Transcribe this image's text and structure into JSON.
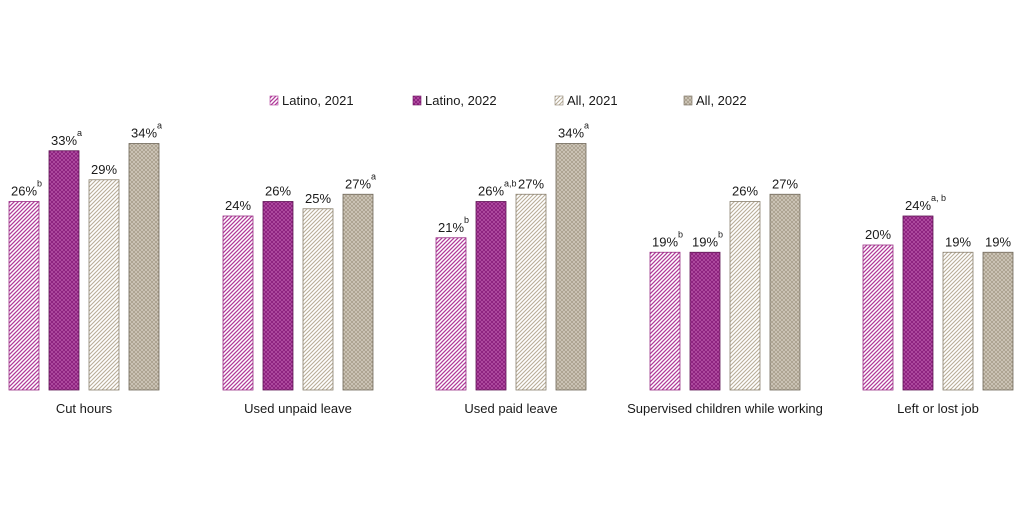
{
  "chart_data": {
    "type": "bar",
    "title": "",
    "xlabel": "",
    "ylabel": "",
    "ylim": [
      0,
      40
    ],
    "categories": [
      "Cut hours",
      "Used unpaid leave",
      "Used paid leave",
      "Supervised children while working",
      "Left or lost job"
    ],
    "series": [
      {
        "name": "Latino, 2021",
        "pattern": "latino-2021",
        "values": [
          26,
          24,
          21,
          19,
          20
        ],
        "labels": [
          "26%",
          "24%",
          "21%",
          "19%",
          "20%"
        ],
        "sup": [
          "b",
          "",
          "b",
          "b",
          ""
        ]
      },
      {
        "name": "Latino, 2022",
        "pattern": "latino-2022",
        "values": [
          33,
          26,
          26,
          19,
          24
        ],
        "labels": [
          "33%",
          "26%",
          "26%",
          "19%",
          "24%"
        ],
        "sup": [
          "a",
          "",
          "a,b",
          "b",
          "a, b"
        ]
      },
      {
        "name": "All, 2021",
        "pattern": "all-2021",
        "values": [
          29,
          25,
          27,
          26,
          19
        ],
        "labels": [
          "29%",
          "25%",
          "27%",
          "26%",
          "19%"
        ],
        "sup": [
          "",
          "",
          "",
          "",
          ""
        ]
      },
      {
        "name": "All, 2022",
        "pattern": "all-2022",
        "values": [
          34,
          27,
          34,
          27,
          19
        ],
        "labels": [
          "34%",
          "27%",
          "34%",
          "27%",
          "19%"
        ],
        "sup": [
          "a",
          "a",
          "a",
          "",
          ""
        ]
      }
    ],
    "legend_position": "top-center",
    "colors": {
      "latino_2021": "#b03a99",
      "latino_2022": "#8a1f7c",
      "all_2021": "#b8ad98",
      "all_2022": "#9a9080"
    }
  }
}
